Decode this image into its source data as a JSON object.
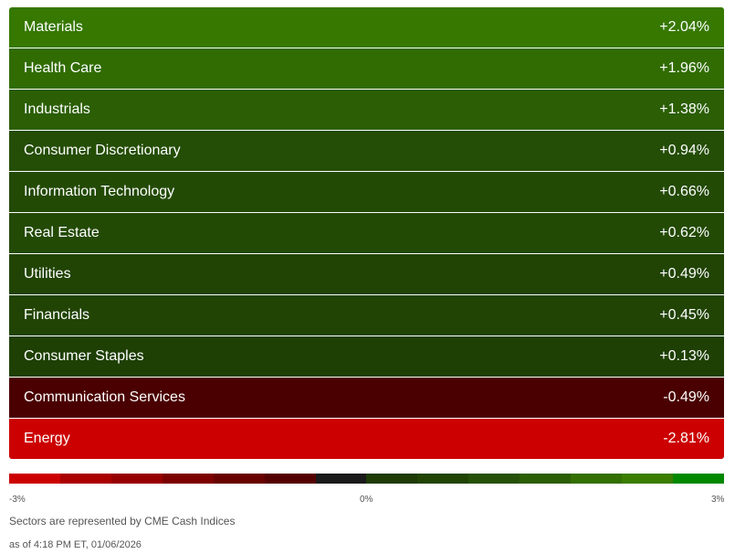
{
  "sectors": [
    {
      "name": "Materials",
      "change": "+2.04%",
      "color": "#367800"
    },
    {
      "name": "Health Care",
      "change": "+1.96%",
      "color": "#316c03"
    },
    {
      "name": "Industrials",
      "change": "+1.38%",
      "color": "#2b5e05"
    },
    {
      "name": "Consumer Discretionary",
      "change": "+0.94%",
      "color": "#244d05"
    },
    {
      "name": "Information Technology",
      "change": "+0.66%",
      "color": "#234a05"
    },
    {
      "name": "Real Estate",
      "change": "+0.62%",
      "color": "#234a05"
    },
    {
      "name": "Utilities",
      "change": "+0.49%",
      "color": "#214405"
    },
    {
      "name": "Financials",
      "change": "+0.45%",
      "color": "#214405"
    },
    {
      "name": "Consumer Staples",
      "change": "+0.13%",
      "color": "#1f4004"
    },
    {
      "name": "Communication Services",
      "change": "-0.49%",
      "color": "#4a0000"
    },
    {
      "name": "Energy",
      "change": "-2.81%",
      "color": "#cc0000"
    }
  ],
  "legend": {
    "colors": [
      "#cc0000",
      "#aa0000",
      "#960000",
      "#7d0000",
      "#690000",
      "#550000",
      "#1a1a1a",
      "#1e3a05",
      "#214405",
      "#26500a",
      "#2b5e05",
      "#336f02",
      "#3a7d00",
      "#008800"
    ],
    "min_label": "-3%",
    "mid_label": "0%",
    "max_label": "3%"
  },
  "footnote": "Sectors are represented by CME Cash Indices",
  "timestamp": "as of 4:18 PM ET, 01/06/2026"
}
